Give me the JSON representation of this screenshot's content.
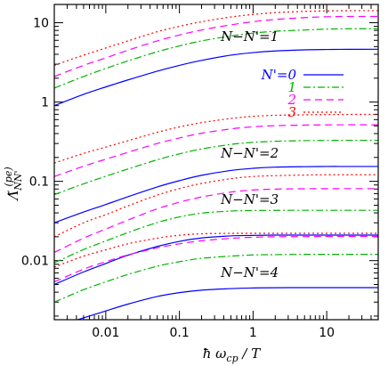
{
  "chart_data": {
    "type": "line",
    "xlabel": "ħ ω_cp / T",
    "ylabel": "Λ̃_NN'^(pe)",
    "xscale": "log",
    "yscale": "log",
    "xlim": [
      0.002,
      50
    ],
    "ylim": [
      0.0018,
      17
    ],
    "x_ticks": [
      {
        "value": 0.01,
        "label": "0.01"
      },
      {
        "value": 0.1,
        "label": "0.1"
      },
      {
        "value": 1,
        "label": "1"
      },
      {
        "value": 10,
        "label": "10"
      }
    ],
    "y_ticks": [
      {
        "value": 0.01,
        "label": "0.01"
      },
      {
        "value": 0.1,
        "label": "0.1"
      },
      {
        "value": 1,
        "label": "1"
      },
      {
        "value": 10,
        "label": "10"
      }
    ],
    "styles": {
      "0": {
        "color": "#0000ff",
        "dash": ""
      },
      "1": {
        "color": "#00b400",
        "dash": "8,3,2,3"
      },
      "2": {
        "color": "#ff00ff",
        "dash": "8,5"
      },
      "3": {
        "color": "#ff0000",
        "dash": "2,3"
      }
    },
    "legend": {
      "position": "top-right",
      "title": "N'=",
      "entries": [
        {
          "label": "N'=0",
          "style": "0"
        },
        {
          "label": "1",
          "style": "1"
        },
        {
          "label": "2",
          "style": "2"
        },
        {
          "label": "3",
          "style": "3"
        }
      ]
    },
    "annotations": [
      {
        "text": "N−N'=1",
        "x": 0.9,
        "y": 5.9
      },
      {
        "text": "N−N'=2",
        "x": 0.9,
        "y": 0.2
      },
      {
        "text": "N−N'=3",
        "x": 0.9,
        "y": 0.052
      },
      {
        "text": "N−N'=4",
        "x": 0.9,
        "y": 0.0062
      }
    ],
    "x": [
      0.002,
      0.005,
      0.01,
      0.02,
      0.05,
      0.1,
      0.2,
      0.5,
      1,
      2,
      5,
      10,
      20,
      50
    ],
    "series": [
      {
        "group": "N-N'=1",
        "style": "0",
        "values": [
          0.9,
          1.25,
          1.55,
          1.9,
          2.45,
          2.9,
          3.35,
          3.9,
          4.2,
          4.4,
          4.55,
          4.6,
          4.62,
          4.63
        ]
      },
      {
        "group": "N-N'=1",
        "style": "1",
        "values": [
          1.5,
          2.1,
          2.65,
          3.3,
          4.3,
          5.1,
          5.9,
          6.8,
          7.4,
          7.8,
          8.1,
          8.3,
          8.4,
          8.4
        ]
      },
      {
        "group": "N-N'=1",
        "style": "2",
        "values": [
          2.1,
          2.9,
          3.6,
          4.5,
          5.9,
          7.0,
          8.1,
          9.4,
          10.3,
          11.0,
          11.6,
          11.9,
          12.0,
          12.0
        ]
      },
      {
        "group": "N-N'=1",
        "style": "3",
        "values": [
          2.9,
          3.9,
          4.8,
          5.9,
          7.7,
          9.0,
          10.3,
          11.8,
          12.7,
          13.4,
          13.9,
          14.1,
          14.2,
          14.2
        ]
      },
      {
        "group": "N-N'=2",
        "style": "0",
        "values": [
          0.03,
          0.041,
          0.051,
          0.064,
          0.085,
          0.102,
          0.119,
          0.137,
          0.146,
          0.151,
          0.153,
          0.154,
          0.154,
          0.154
        ]
      },
      {
        "group": "N-N'=2",
        "style": "1",
        "values": [
          0.068,
          0.093,
          0.116,
          0.143,
          0.187,
          0.222,
          0.256,
          0.292,
          0.31,
          0.32,
          0.326,
          0.328,
          0.329,
          0.329
        ]
      },
      {
        "group": "N-N'=2",
        "style": "2",
        "values": [
          0.115,
          0.155,
          0.19,
          0.232,
          0.3,
          0.352,
          0.404,
          0.458,
          0.487,
          0.503,
          0.512,
          0.515,
          0.516,
          0.516
        ]
      },
      {
        "group": "N-N'=2",
        "style": "3",
        "values": [
          0.17,
          0.225,
          0.27,
          0.325,
          0.415,
          0.485,
          0.55,
          0.62,
          0.66,
          0.68,
          0.69,
          0.695,
          0.697,
          0.697
        ]
      },
      {
        "group": "N-N'=3",
        "style": "0",
        "values": [
          0.005,
          0.0072,
          0.0092,
          0.0117,
          0.0151,
          0.0175,
          0.0193,
          0.0205,
          0.0208,
          0.021,
          0.021,
          0.021,
          0.021,
          0.021
        ]
      },
      {
        "group": "N-N'=3",
        "style": "1",
        "values": [
          0.0094,
          0.0138,
          0.0177,
          0.0226,
          0.0302,
          0.0356,
          0.0397,
          0.0422,
          0.0428,
          0.043,
          0.0431,
          0.0431,
          0.0431,
          0.0431
        ]
      },
      {
        "group": "N-N'=3",
        "style": "2",
        "values": [
          0.0127,
          0.0192,
          0.025,
          0.0325,
          0.045,
          0.0545,
          0.0635,
          0.0732,
          0.0778,
          0.0798,
          0.0806,
          0.0808,
          0.0809,
          0.0809
        ]
      },
      {
        "group": "N-N'=3",
        "style": "3",
        "values": [
          0.02,
          0.03,
          0.038,
          0.049,
          0.067,
          0.081,
          0.094,
          0.108,
          0.115,
          0.118,
          0.12,
          0.121,
          0.121,
          0.121
        ]
      },
      {
        "group": "N-N'=4",
        "style": "0",
        "values": [
          0.00145,
          0.0019,
          0.00232,
          0.00283,
          0.00353,
          0.00395,
          0.00424,
          0.00444,
          0.00452,
          0.00455,
          0.00457,
          0.00457,
          0.00457,
          0.00457
        ]
      },
      {
        "group": "N-N'=4",
        "style": "1",
        "values": [
          0.003,
          0.0043,
          0.0054,
          0.0067,
          0.0085,
          0.0097,
          0.0107,
          0.0114,
          0.0118,
          0.0119,
          0.012,
          0.012,
          0.012,
          0.012
        ]
      },
      {
        "group": "N-N'=4",
        "style": "2",
        "values": [
          0.0054,
          0.0078,
          0.0097,
          0.0118,
          0.0145,
          0.0163,
          0.0178,
          0.0191,
          0.0197,
          0.02,
          0.0201,
          0.0202,
          0.0202,
          0.0202
        ]
      },
      {
        "group": "N-N'=4",
        "style": "3",
        "values": [
          0.0083,
          0.0114,
          0.0137,
          0.0163,
          0.0192,
          0.0209,
          0.0218,
          0.0221,
          0.0221,
          0.0221,
          0.0221,
          0.0221,
          0.0221,
          0.0221
        ]
      }
    ]
  }
}
